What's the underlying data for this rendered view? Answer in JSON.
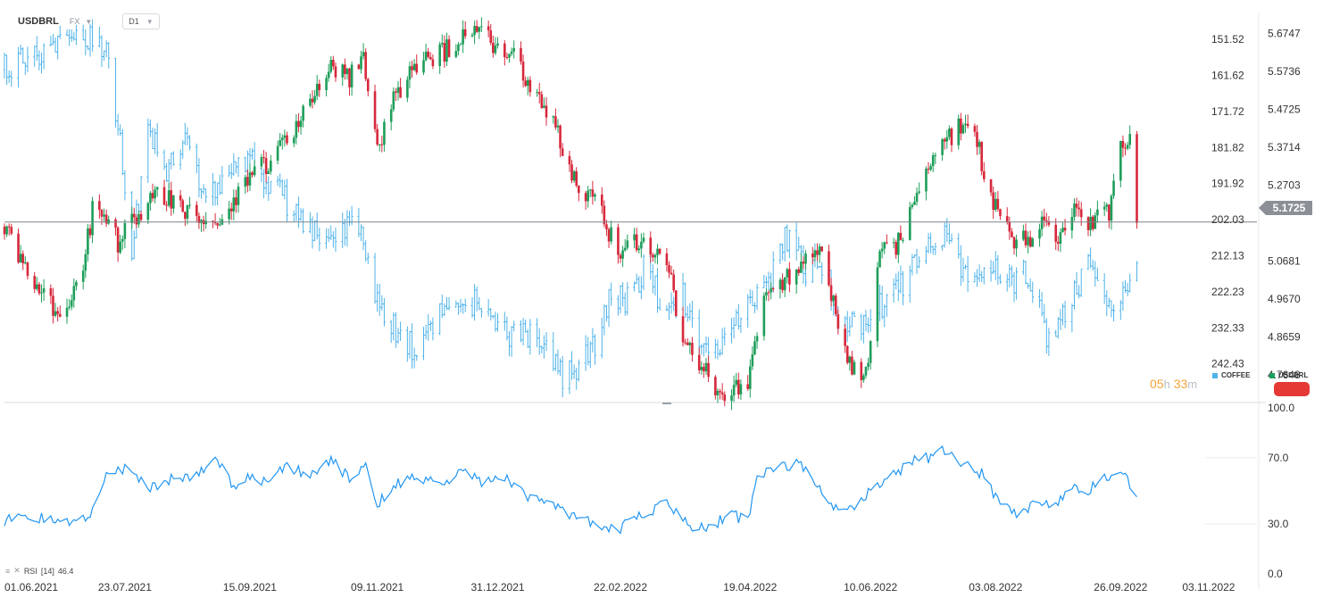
{
  "toolbar": {
    "symbol": "USDBRL",
    "market": "FX",
    "timeframe": "D1"
  },
  "countdown": {
    "hours": "05",
    "h_unit": "h",
    "minutes": "33",
    "m_unit": "m"
  },
  "legend": {
    "coffee": {
      "label": "COFFEE",
      "color": "#4fb3e8"
    },
    "usdbrl": {
      "label": "USDBRL",
      "color": "#1e9e5a"
    }
  },
  "current_price": "5.1725",
  "colors": {
    "up": "#1e9e5a",
    "down": "#d7283b",
    "coffee": "#4fb3e8",
    "rsi": "#2196f3",
    "badge": "#e53935"
  },
  "chart_data": [
    {
      "type": "candlestick",
      "series": [
        {
          "name": "USDBRL",
          "axis": "right",
          "ylim": [
            4.6935,
            5.7358
          ],
          "ticks": [
            "5.6747",
            "5.5736",
            "5.4725",
            "5.3714",
            "5.2703",
            "5.1725",
            "5.0681",
            "4.9670",
            "4.8659",
            "4.7648"
          ]
        },
        {
          "name": "COFFEE",
          "axis": "left-inner",
          "ylim": [
            143.5,
            253.0
          ],
          "inverted": true,
          "ticks": [
            "151.52",
            "161.62",
            "171.72",
            "181.82",
            "191.92",
            "202.03",
            "212.13",
            "222.23",
            "232.33",
            "242.43"
          ]
        }
      ],
      "x_ticks": [
        "01.06.2021",
        "23.07.2021",
        "15.09.2021",
        "09.11.2021",
        "31.12.2021",
        "22.02.2022",
        "19.04.2022",
        "10.06.2022",
        "03.08.2022",
        "26.09.2022",
        "03.11.2022"
      ],
      "x_range": [
        "2021-06-01",
        "2022-11-20"
      ],
      "usdbrl_anchors": [
        [
          "2021-06-01",
          5.16
        ],
        [
          "2021-06-10",
          5.06
        ],
        [
          "2021-06-25",
          4.92
        ],
        [
          "2021-07-05",
          5.05
        ],
        [
          "2021-07-10",
          5.24
        ],
        [
          "2021-07-20",
          5.12
        ],
        [
          "2021-07-30",
          5.2
        ],
        [
          "2021-08-06",
          5.26
        ],
        [
          "2021-08-14",
          5.22
        ],
        [
          "2021-08-24",
          5.17
        ],
        [
          "2021-09-01",
          5.18
        ],
        [
          "2021-09-08",
          5.22
        ],
        [
          "2021-09-15",
          5.29
        ],
        [
          "2021-09-22",
          5.33
        ],
        [
          "2021-10-01",
          5.38
        ],
        [
          "2021-10-10",
          5.48
        ],
        [
          "2021-10-20",
          5.58
        ],
        [
          "2021-10-28",
          5.56
        ],
        [
          "2021-11-03",
          5.62
        ],
        [
          "2021-11-09",
          5.36
        ],
        [
          "2021-11-16",
          5.5
        ],
        [
          "2021-11-26",
          5.6
        ],
        [
          "2021-12-06",
          5.62
        ],
        [
          "2021-12-15",
          5.66
        ],
        [
          "2021-12-24",
          5.68
        ],
        [
          "2021-12-31",
          5.64
        ],
        [
          "2022-01-07",
          5.61
        ],
        [
          "2022-01-14",
          5.52
        ],
        [
          "2022-01-24",
          5.44
        ],
        [
          "2022-02-01",
          5.29
        ],
        [
          "2022-02-10",
          5.24
        ],
        [
          "2022-02-17",
          5.15
        ],
        [
          "2022-02-22",
          5.08
        ],
        [
          "2022-03-01",
          5.12
        ],
        [
          "2022-03-06",
          5.11
        ],
        [
          "2022-03-15",
          5.03
        ],
        [
          "2022-03-22",
          4.84
        ],
        [
          "2022-03-28",
          4.8
        ],
        [
          "2022-04-04",
          4.73
        ],
        [
          "2022-04-12",
          4.72
        ],
        [
          "2022-04-18",
          4.75
        ],
        [
          "2022-04-25",
          4.96
        ],
        [
          "2022-05-05",
          5.02
        ],
        [
          "2022-05-12",
          5.08
        ],
        [
          "2022-05-19",
          5.12
        ],
        [
          "2022-05-26",
          4.92
        ],
        [
          "2022-06-01",
          4.8
        ],
        [
          "2022-06-08",
          4.77
        ],
        [
          "2022-06-14",
          5.08
        ],
        [
          "2022-06-22",
          5.12
        ],
        [
          "2022-06-30",
          5.24
        ],
        [
          "2022-07-08",
          5.36
        ],
        [
          "2022-07-14",
          5.4
        ],
        [
          "2022-07-22",
          5.45
        ],
        [
          "2022-07-26",
          5.38
        ],
        [
          "2022-08-01",
          5.25
        ],
        [
          "2022-08-05",
          5.18
        ],
        [
          "2022-08-12",
          5.12
        ],
        [
          "2022-08-18",
          5.13
        ],
        [
          "2022-08-24",
          5.17
        ],
        [
          "2022-08-30",
          5.11
        ],
        [
          "2022-09-04",
          5.2
        ],
        [
          "2022-09-09",
          5.18
        ],
        [
          "2022-09-13",
          5.16
        ],
        [
          "2022-09-17",
          5.22
        ],
        [
          "2022-09-21",
          5.2
        ],
        [
          "2022-09-25",
          5.37
        ],
        [
          "2022-09-29",
          5.4
        ],
        [
          "2022-10-02",
          5.39
        ],
        [
          "2022-10-03",
          5.17
        ]
      ],
      "coffee_anchors": [
        [
          "2021-06-01",
          160
        ],
        [
          "2021-06-20",
          155
        ],
        [
          "2021-07-05",
          150
        ],
        [
          "2021-07-14",
          153
        ],
        [
          "2021-07-20",
          175
        ],
        [
          "2021-07-26",
          212
        ],
        [
          "2021-08-02",
          175
        ],
        [
          "2021-08-10",
          188
        ],
        [
          "2021-08-18",
          181
        ],
        [
          "2021-08-28",
          196
        ],
        [
          "2021-09-06",
          187
        ],
        [
          "2021-09-15",
          185
        ],
        [
          "2021-09-22",
          190
        ],
        [
          "2021-09-30",
          196
        ],
        [
          "2021-10-08",
          203
        ],
        [
          "2021-10-14",
          205
        ],
        [
          "2021-10-24",
          204
        ],
        [
          "2021-11-01",
          202
        ],
        [
          "2021-11-09",
          226
        ],
        [
          "2021-11-16",
          232
        ],
        [
          "2021-11-24",
          238
        ],
        [
          "2021-12-02",
          234
        ],
        [
          "2021-12-08",
          225
        ],
        [
          "2021-12-16",
          223
        ],
        [
          "2021-12-24",
          227
        ],
        [
          "2021-12-31",
          233
        ],
        [
          "2022-01-08",
          234
        ],
        [
          "2022-01-16",
          235
        ],
        [
          "2022-01-22",
          240
        ],
        [
          "2022-01-28",
          246
        ],
        [
          "2022-02-04",
          243
        ],
        [
          "2022-02-12",
          236
        ],
        [
          "2022-02-18",
          222
        ],
        [
          "2022-02-26",
          225
        ],
        [
          "2022-03-06",
          213
        ],
        [
          "2022-03-12",
          230
        ],
        [
          "2022-03-20",
          222
        ],
        [
          "2022-03-28",
          234
        ],
        [
          "2022-04-04",
          238
        ],
        [
          "2022-04-12",
          232
        ],
        [
          "2022-04-20",
          224
        ],
        [
          "2022-04-28",
          218
        ],
        [
          "2022-05-04",
          206
        ],
        [
          "2022-05-12",
          216
        ],
        [
          "2022-05-20",
          214
        ],
        [
          "2022-05-28",
          230
        ],
        [
          "2022-06-04",
          233
        ],
        [
          "2022-06-12",
          226
        ],
        [
          "2022-06-18",
          225
        ],
        [
          "2022-06-26",
          218
        ],
        [
          "2022-07-04",
          210
        ],
        [
          "2022-07-10",
          205
        ],
        [
          "2022-07-14",
          208
        ],
        [
          "2022-07-20",
          216
        ],
        [
          "2022-07-28",
          218
        ],
        [
          "2022-08-04",
          216
        ],
        [
          "2022-08-10",
          220
        ],
        [
          "2022-08-16",
          216
        ],
        [
          "2022-08-20",
          222
        ],
        [
          "2022-08-25",
          236
        ],
        [
          "2022-08-30",
          232
        ],
        [
          "2022-09-04",
          226
        ],
        [
          "2022-09-08",
          220
        ],
        [
          "2022-09-12",
          215
        ],
        [
          "2022-09-18",
          223
        ],
        [
          "2022-09-24",
          226
        ],
        [
          "2022-09-29",
          223
        ],
        [
          "2022-10-03",
          217
        ]
      ],
      "reference_line": 5.1725
    },
    {
      "type": "line",
      "series": [
        {
          "name": "RSI",
          "params": "[14]",
          "last_value": "46.4"
        }
      ],
      "ylim": [
        0,
        100
      ],
      "y_ticks": [
        "100.0",
        "70.0",
        "30.0",
        "0.0"
      ],
      "rsi_anchors": [
        [
          "2021-06-01",
          32
        ],
        [
          "2021-06-15",
          34
        ],
        [
          "2021-06-29",
          30
        ],
        [
          "2021-07-08",
          36
        ],
        [
          "2021-07-15",
          60
        ],
        [
          "2021-07-24",
          64
        ],
        [
          "2021-08-02",
          52
        ],
        [
          "2021-08-12",
          57
        ],
        [
          "2021-08-22",
          60
        ],
        [
          "2021-09-01",
          70
        ],
        [
          "2021-09-08",
          52
        ],
        [
          "2021-09-15",
          60
        ],
        [
          "2021-09-22",
          55
        ],
        [
          "2021-10-01",
          65
        ],
        [
          "2021-10-10",
          60
        ],
        [
          "2021-10-20",
          68
        ],
        [
          "2021-10-28",
          58
        ],
        [
          "2021-11-04",
          64
        ],
        [
          "2021-11-09",
          42
        ],
        [
          "2021-11-18",
          54
        ],
        [
          "2021-11-26",
          60
        ],
        [
          "2021-12-06",
          52
        ],
        [
          "2021-12-16",
          62
        ],
        [
          "2021-12-24",
          56
        ],
        [
          "2022-01-04",
          58
        ],
        [
          "2022-01-12",
          46
        ],
        [
          "2022-01-22",
          42
        ],
        [
          "2022-02-01",
          36
        ],
        [
          "2022-02-08",
          32
        ],
        [
          "2022-02-15",
          28
        ],
        [
          "2022-02-22",
          24
        ],
        [
          "2022-02-26",
          38
        ],
        [
          "2022-03-04",
          32
        ],
        [
          "2022-03-12",
          44
        ],
        [
          "2022-03-18",
          38
        ],
        [
          "2022-03-26",
          26
        ],
        [
          "2022-04-04",
          30
        ],
        [
          "2022-04-10",
          36
        ],
        [
          "2022-04-18",
          32
        ],
        [
          "2022-04-22",
          60
        ],
        [
          "2022-05-01",
          64
        ],
        [
          "2022-05-10",
          66
        ],
        [
          "2022-05-18",
          54
        ],
        [
          "2022-05-26",
          40
        ],
        [
          "2022-06-04",
          42
        ],
        [
          "2022-06-12",
          52
        ],
        [
          "2022-06-20",
          60
        ],
        [
          "2022-06-28",
          68
        ],
        [
          "2022-07-06",
          70
        ],
        [
          "2022-07-12",
          74
        ],
        [
          "2022-07-20",
          66
        ],
        [
          "2022-07-28",
          60
        ],
        [
          "2022-08-05",
          42
        ],
        [
          "2022-08-12",
          36
        ],
        [
          "2022-08-20",
          42
        ],
        [
          "2022-08-28",
          40
        ],
        [
          "2022-09-05",
          52
        ],
        [
          "2022-09-10",
          48
        ],
        [
          "2022-09-18",
          56
        ],
        [
          "2022-09-24",
          62
        ],
        [
          "2022-09-29",
          56
        ],
        [
          "2022-10-03",
          46
        ]
      ]
    }
  ]
}
